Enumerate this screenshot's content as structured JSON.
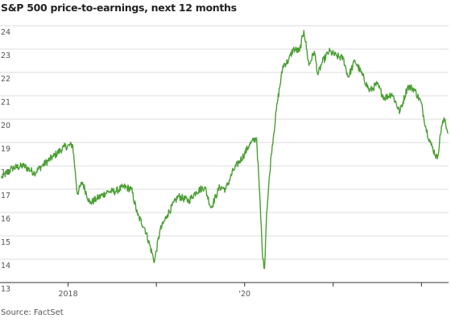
{
  "chart_data": {
    "type": "line",
    "title": "S&P 500 price-to-earnings, next 12 months",
    "source": "Source: FactSet",
    "ylim": [
      13,
      24
    ],
    "yticks": [
      13,
      14,
      15,
      16,
      17,
      18,
      19,
      20,
      21,
      22,
      23,
      24
    ],
    "xlim": [
      "2017-04-01",
      "2022-04-20"
    ],
    "xtick_marks": [
      "2018-01-01",
      "2019-01-01",
      "2020-01-01",
      "2021-01-01",
      "2022-01-01"
    ],
    "xtick_labels": [
      {
        "date": "2018-01-01",
        "label": "2018"
      },
      {
        "date": "2020-01-01",
        "label": "'20"
      }
    ],
    "grid": "horizontal",
    "colors": {
      "line": "#4a9e33",
      "grid": "#dddddd",
      "axis": "#333333"
    },
    "series": [
      {
        "x": [
          "2017-04-01",
          "2017-05-15",
          "2017-07-01",
          "2017-08-15",
          "2017-09-15",
          "2017-11-01",
          "2017-12-15",
          "2018-01-20",
          "2018-02-08",
          "2018-03-01",
          "2018-04-01",
          "2018-05-01",
          "2018-06-15",
          "2018-07-15",
          "2018-08-20",
          "2018-09-20",
          "2018-10-15",
          "2018-11-15",
          "2018-12-24",
          "2019-01-15",
          "2019-02-15",
          "2019-04-01",
          "2019-05-15",
          "2019-06-15",
          "2019-07-20",
          "2019-08-15",
          "2019-09-20",
          "2019-10-15",
          "2019-11-15",
          "2019-12-31",
          "2020-01-20",
          "2020-02-19",
          "2020-02-28",
          "2020-03-16",
          "2020-03-23",
          "2020-04-01",
          "2020-04-20",
          "2020-05-15",
          "2020-06-08",
          "2020-06-30",
          "2020-07-20",
          "2020-08-15",
          "2020-09-02",
          "2020-09-23",
          "2020-10-15",
          "2020-10-30",
          "2020-11-15",
          "2020-12-15",
          "2021-01-15",
          "2021-02-12",
          "2021-03-04",
          "2021-04-01",
          "2021-05-01",
          "2021-06-01",
          "2021-07-01",
          "2021-08-01",
          "2021-09-01",
          "2021-10-04",
          "2021-11-05",
          "2021-12-01",
          "2021-12-31",
          "2022-01-20",
          "2022-02-10",
          "2022-03-08",
          "2022-03-25",
          "2022-04-08",
          "2022-04-20"
        ],
        "values": [
          17.5,
          17.9,
          18.0,
          17.7,
          18.0,
          18.4,
          18.8,
          18.9,
          16.8,
          17.3,
          16.4,
          16.6,
          16.9,
          16.9,
          17.1,
          17.0,
          15.9,
          15.3,
          13.9,
          15.2,
          15.9,
          16.7,
          16.5,
          16.9,
          17.1,
          16.2,
          17.1,
          17.0,
          17.8,
          18.5,
          18.9,
          19.2,
          17.6,
          14.0,
          13.6,
          16.0,
          18.5,
          20.7,
          22.3,
          22.5,
          23.0,
          22.9,
          23.8,
          22.3,
          22.9,
          21.9,
          22.4,
          22.9,
          22.7,
          22.6,
          21.8,
          22.5,
          21.9,
          21.2,
          21.5,
          20.9,
          21.1,
          20.3,
          21.4,
          21.3,
          20.7,
          19.6,
          18.9,
          18.3,
          19.7,
          20.0,
          19.4
        ]
      }
    ]
  }
}
